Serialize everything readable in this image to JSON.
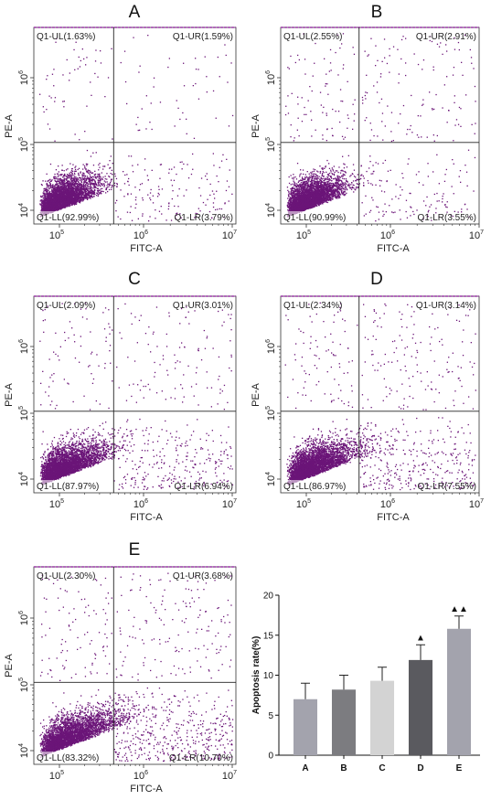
{
  "chart_data": [
    {
      "type": "scatter",
      "panel": "A",
      "xlabel": "FITC-A",
      "ylabel": "PE-A",
      "x_ticks": [
        "10^5",
        "10^6",
        "10^7"
      ],
      "y_ticks": [
        "10^4",
        "10^5",
        "10^6"
      ],
      "scale": "log",
      "quadrants": {
        "UL": "Q1-UL(1.63%)",
        "UR": "Q1-UR(1.59%)",
        "LL": "Q1-LL(92.99%)",
        "LR": "Q1-LR(3.79%)"
      },
      "quadrant_percent": {
        "UL": 1.63,
        "UR": 1.59,
        "LL": 92.99,
        "LR": 3.79
      }
    },
    {
      "type": "scatter",
      "panel": "B",
      "xlabel": "FITC-A",
      "ylabel": "PE-A",
      "x_ticks": [
        "10^5",
        "10^6",
        "10^7"
      ],
      "y_ticks": [
        "10^4",
        "10^5",
        "10^6"
      ],
      "scale": "log",
      "quadrants": {
        "UL": "Q1-UL(2.55%)",
        "UR": "Q1-UR(2.91%)",
        "LL": "Q1-LL(90.99%)",
        "LR": "Q1-LR(3.55%)"
      },
      "quadrant_percent": {
        "UL": 2.55,
        "UR": 2.91,
        "LL": 90.99,
        "LR": 3.55
      }
    },
    {
      "type": "scatter",
      "panel": "C",
      "xlabel": "FITC-A",
      "ylabel": "PE-A",
      "x_ticks": [
        "10^5",
        "10^6",
        "10^7"
      ],
      "y_ticks": [
        "10^4",
        "10^5",
        "10^6"
      ],
      "scale": "log",
      "quadrants": {
        "UL": "Q1-UL(2.09%)",
        "UR": "Q1-UR(3.01%)",
        "LL": "Q1-LL(87.97%)",
        "LR": "Q1-LR(6.94%)"
      },
      "quadrant_percent": {
        "UL": 2.09,
        "UR": 3.01,
        "LL": 87.97,
        "LR": 6.94
      }
    },
    {
      "type": "scatter",
      "panel": "D",
      "xlabel": "FITC-A",
      "ylabel": "PE-A",
      "x_ticks": [
        "10^5",
        "10^6",
        "10^7"
      ],
      "y_ticks": [
        "10^4",
        "10^5",
        "10^6"
      ],
      "scale": "log",
      "quadrants": {
        "UL": "Q1-UL(2.34%)",
        "UR": "Q1-UR(3.14%)",
        "LL": "Q1-LL(86.97%)",
        "LR": "Q1-LR(7.55%)"
      },
      "quadrant_percent": {
        "UL": 2.34,
        "UR": 3.14,
        "LL": 86.97,
        "LR": 7.55
      }
    },
    {
      "type": "scatter",
      "panel": "E",
      "xlabel": "FITC-A",
      "ylabel": "PE-A",
      "x_ticks": [
        "10^5",
        "10^6",
        "10^7"
      ],
      "y_ticks": [
        "10^4",
        "10^5",
        "10^6"
      ],
      "scale": "log",
      "quadrants": {
        "UL": "Q1-UL(2.30%)",
        "UR": "Q1-UR(3.68%)",
        "LL": "Q1-LL(83.32%)",
        "LR": "Q1-LR(10.70%)"
      },
      "quadrant_percent": {
        "UL": 2.3,
        "UR": 3.68,
        "LL": 83.32,
        "LR": 10.7
      }
    },
    {
      "type": "bar",
      "categories": [
        "A",
        "B",
        "C",
        "D",
        "E"
      ],
      "values": [
        7.0,
        8.2,
        9.3,
        11.9,
        15.8
      ],
      "errors": [
        2.0,
        1.8,
        1.7,
        1.9,
        1.6
      ],
      "annotations": [
        "",
        "",
        "",
        "▲",
        "▲▲"
      ],
      "ylabel": "Apoptosis rate(%)",
      "ylim": [
        0,
        20
      ],
      "yticks": [
        0,
        5,
        10,
        15,
        20
      ],
      "bar_colors": [
        "#a3a3ad",
        "#7c7c80",
        "#d3d3d3",
        "#5a5a5f",
        "#a3a3ad"
      ],
      "grid": false
    }
  ],
  "colors": {
    "dot": "#6b1578",
    "axis": "#333333",
    "gate": "#222222",
    "frame_top": "#9a3aa6"
  }
}
